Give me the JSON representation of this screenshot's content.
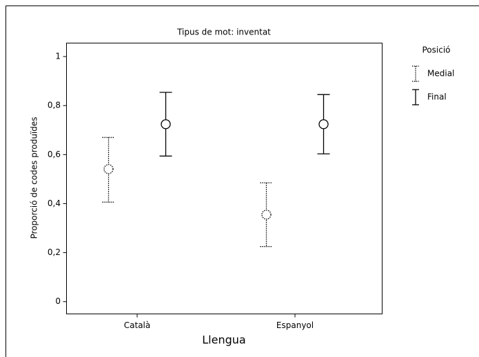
{
  "chart_data": {
    "type": "errorbar",
    "title": "Tipus de mot: inventat",
    "xlabel": "Llengua",
    "ylabel": "Proporció de codes produïdes",
    "categories": [
      "Català",
      "Espanyol"
    ],
    "legend_title": "Posició",
    "legend": "right",
    "series": [
      {
        "name": "Medial",
        "color": "#000000",
        "line_style": "dotted",
        "values": [
          0.541,
          0.355
        ],
        "lower": [
          0.406,
          0.225
        ],
        "upper": [
          0.67,
          0.485
        ]
      },
      {
        "name": "Final",
        "color": "#000000",
        "line_style": "solid",
        "values": [
          0.724,
          0.724
        ],
        "lower": [
          0.594,
          0.603
        ],
        "upper": [
          0.854,
          0.845
        ]
      }
    ],
    "ylim": [
      -0.05,
      1.055
    ],
    "yticks": [
      0,
      {
        "value": 0.2,
        "label": "0,2"
      },
      {
        "value": 0.4,
        "label": "0,4"
      },
      {
        "value": 0.6,
        "label": "0,6"
      },
      {
        "value": 0.8,
        "label": "0,8"
      },
      1
    ]
  }
}
